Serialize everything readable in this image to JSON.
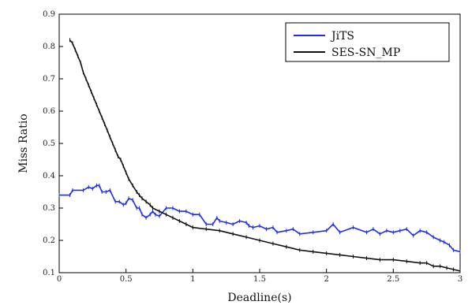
{
  "chart_data": {
    "type": "line",
    "title": "",
    "xlabel": "Deadline(s)",
    "ylabel": "Miss Ratio",
    "xlim": [
      0,
      3
    ],
    "ylim": [
      0.1,
      0.9
    ],
    "x_ticks": [
      "0",
      "0.5",
      "1",
      "1.5",
      "2",
      "2.5",
      "3"
    ],
    "y_ticks": [
      "0.1",
      "0.2",
      "0.3",
      "0.4",
      "0.5",
      "0.6",
      "0.7",
      "0.8",
      "0.9"
    ],
    "grid": false,
    "legend_position": "top-right",
    "series": [
      {
        "name": "JiTS",
        "color": "#1f2fe6",
        "x": [
          0,
          0.08,
          0.1,
          0.18,
          0.22,
          0.25,
          0.28,
          0.3,
          0.32,
          0.35,
          0.38,
          0.42,
          0.45,
          0.48,
          0.5,
          0.52,
          0.55,
          0.58,
          0.6,
          0.62,
          0.65,
          0.68,
          0.7,
          0.72,
          0.75,
          0.8,
          0.85,
          0.9,
          0.95,
          1.0,
          1.05,
          1.1,
          1.15,
          1.18,
          1.2,
          1.25,
          1.3,
          1.35,
          1.4,
          1.42,
          1.45,
          1.5,
          1.55,
          1.6,
          1.63,
          1.7,
          1.75,
          1.8,
          1.9,
          2.0,
          2.05,
          2.1,
          2.2,
          2.3,
          2.35,
          2.4,
          2.45,
          2.5,
          2.55,
          2.6,
          2.65,
          2.7,
          2.75,
          2.8,
          2.85,
          2.88,
          2.92,
          2.95,
          3.0
        ],
        "values": [
          0.34,
          0.34,
          0.355,
          0.355,
          0.365,
          0.36,
          0.37,
          0.37,
          0.35,
          0.35,
          0.355,
          0.32,
          0.32,
          0.31,
          0.315,
          0.33,
          0.325,
          0.3,
          0.3,
          0.28,
          0.27,
          0.28,
          0.29,
          0.28,
          0.275,
          0.3,
          0.3,
          0.29,
          0.29,
          0.28,
          0.28,
          0.25,
          0.25,
          0.27,
          0.26,
          0.255,
          0.25,
          0.26,
          0.255,
          0.245,
          0.24,
          0.245,
          0.235,
          0.24,
          0.225,
          0.23,
          0.235,
          0.22,
          0.225,
          0.23,
          0.25,
          0.225,
          0.24,
          0.225,
          0.235,
          0.22,
          0.23,
          0.225,
          0.23,
          0.235,
          0.215,
          0.23,
          0.225,
          0.21,
          0.2,
          0.195,
          0.185,
          0.17,
          0.165
        ]
      },
      {
        "name": "SES-SN_MP",
        "color": "#111111",
        "x": [
          0.08,
          0.1,
          0.12,
          0.14,
          0.16,
          0.18,
          0.2,
          0.22,
          0.24,
          0.26,
          0.28,
          0.3,
          0.32,
          0.34,
          0.36,
          0.38,
          0.4,
          0.42,
          0.44,
          0.46,
          0.48,
          0.5,
          0.52,
          0.55,
          0.58,
          0.6,
          0.62,
          0.65,
          0.68,
          0.7,
          0.75,
          0.8,
          0.85,
          0.9,
          0.95,
          1.0,
          1.1,
          1.2,
          1.3,
          1.4,
          1.5,
          1.6,
          1.7,
          1.8,
          1.9,
          2.0,
          2.1,
          2.2,
          2.3,
          2.4,
          2.5,
          2.6,
          2.7,
          2.75,
          2.8,
          2.85,
          2.9,
          2.95,
          3.0
        ],
        "values": [
          0.82,
          0.81,
          0.79,
          0.77,
          0.75,
          0.72,
          0.7,
          0.68,
          0.66,
          0.64,
          0.62,
          0.6,
          0.58,
          0.56,
          0.54,
          0.52,
          0.5,
          0.48,
          0.46,
          0.45,
          0.43,
          0.41,
          0.39,
          0.37,
          0.35,
          0.34,
          0.33,
          0.32,
          0.31,
          0.3,
          0.29,
          0.28,
          0.27,
          0.26,
          0.25,
          0.24,
          0.235,
          0.23,
          0.22,
          0.21,
          0.2,
          0.19,
          0.18,
          0.17,
          0.165,
          0.16,
          0.155,
          0.15,
          0.145,
          0.14,
          0.14,
          0.135,
          0.13,
          0.13,
          0.12,
          0.12,
          0.115,
          0.11,
          0.105
        ]
      }
    ]
  }
}
